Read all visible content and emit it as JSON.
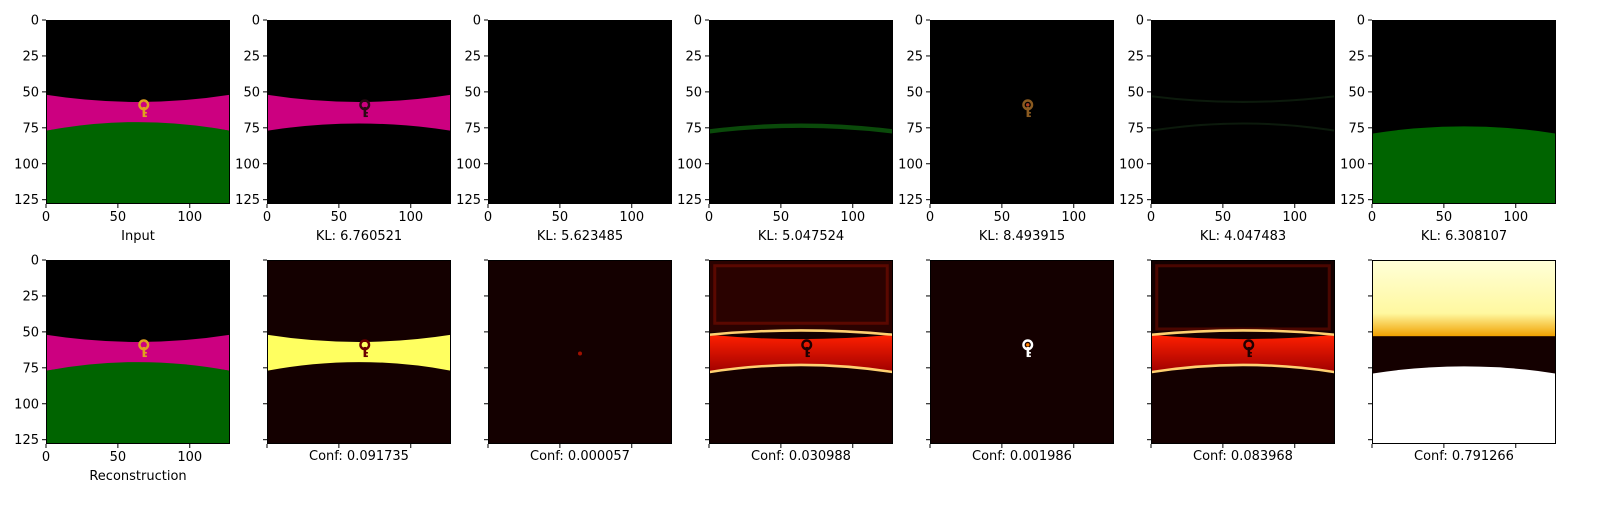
{
  "colors": {
    "background": "#000000",
    "magenta": "#cc0080",
    "green": "#006400",
    "key": "#e0a020",
    "key_dark": "#400000",
    "heat_low": "#140000",
    "heat_mid": "#e01000",
    "heat_high": "#ffff60",
    "heat_max": "#ffffff"
  },
  "chart_data": {
    "type": "image-grid",
    "image_extent": [
      0,
      128,
      128,
      0
    ],
    "x_ticks": [
      0,
      50,
      100
    ],
    "y_ticks": [
      0,
      25,
      50,
      75,
      100,
      125
    ],
    "rows": [
      {
        "name": "slots",
        "panels": [
          {
            "caption": "Input",
            "content": "scene"
          },
          {
            "caption": "KL: 6.760521",
            "kl": 6.760521,
            "content": "magenta-band"
          },
          {
            "caption": "KL: 5.623485",
            "kl": 5.623485,
            "content": "empty"
          },
          {
            "caption": "KL: 5.047524",
            "kl": 5.047524,
            "content": "faint-green-line"
          },
          {
            "caption": "KL: 8.493915",
            "kl": 8.493915,
            "content": "key-only"
          },
          {
            "caption": "KL: 4.047483",
            "kl": 4.047483,
            "content": "faint-outline"
          },
          {
            "caption": "KL: 6.308107",
            "kl": 6.308107,
            "content": "green-ground"
          }
        ]
      },
      {
        "name": "confidence",
        "panels": [
          {
            "caption": "Reconstruction",
            "content": "scene"
          },
          {
            "caption": "Conf: 0.091735",
            "conf": 0.091735,
            "content": "heat-band-yellow"
          },
          {
            "caption": "Conf: 0.000057",
            "conf": 5.7e-05,
            "content": "heat-empty"
          },
          {
            "caption": "Conf: 0.030988",
            "conf": 0.030988,
            "content": "heat-band-red-noisy"
          },
          {
            "caption": "Conf: 0.001986",
            "conf": 0.001986,
            "content": "heat-key"
          },
          {
            "caption": "Conf: 0.083968",
            "conf": 0.083968,
            "content": "heat-band-red"
          },
          {
            "caption": "Conf: 0.791266",
            "conf": 0.791266,
            "content": "heat-sky-ground"
          }
        ]
      }
    ]
  }
}
